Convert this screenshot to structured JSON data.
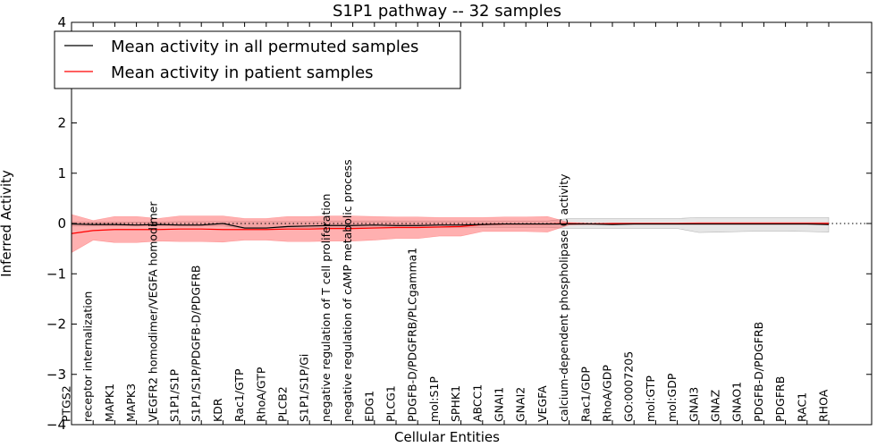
{
  "chart_data": {
    "type": "line",
    "title": "S1P1 pathway -- 32 samples",
    "xlabel": "Cellular Entities",
    "ylabel": "Inferred Activity",
    "ylim": [
      -4,
      4
    ],
    "yticks": [
      4,
      3,
      2,
      1,
      0,
      -1,
      -2,
      -3,
      -4
    ],
    "ytick_labels": [
      "4",
      "3",
      "2",
      "1",
      "0",
      "−1",
      "−2",
      "−3",
      "−4"
    ],
    "grid": false,
    "legend_position": "top-left",
    "categories": [
      "PTGS2",
      "receptor internalization",
      "MAPK1",
      "MAPK3",
      "VEGFR2 homodimer/VEGFA homodimer",
      "S1P1/S1P",
      "S1P1/S1P/PDGFB-D/PDGFRB",
      "KDR",
      "Rac1/GTP",
      "RhoA/GTP",
      "PLCB2",
      "S1P1/S1P/Gi",
      "negative regulation of T cell proliferation",
      "negative regulation of cAMP metabolic process",
      "EDG1",
      "PLCG1",
      "PDGFB-D/PDGFRB/PLCgamma1",
      "mol:S1P",
      "SPHK1",
      "ABCC1",
      "GNAI1",
      "GNAI2",
      "VEGFA",
      "calcium-dependent phospholipase C activity",
      "Rac1/GDP",
      "RhoA/GDP",
      "GO:0007205",
      "mol:GTP",
      "mol:GDP",
      "GNAI3",
      "GNAZ",
      "GNAO1",
      "PDGFB-D/PDGFRB",
      "PDGFRB",
      "RAC1",
      "RHOA"
    ],
    "series": [
      {
        "name": "Mean activity in all permuted samples",
        "color": "#000000",
        "values": [
          -0.01,
          -0.02,
          -0.02,
          -0.03,
          -0.02,
          -0.03,
          -0.03,
          0.0,
          -0.09,
          -0.09,
          -0.06,
          -0.05,
          -0.04,
          -0.04,
          -0.03,
          -0.04,
          -0.04,
          -0.03,
          -0.03,
          -0.02,
          -0.01,
          -0.01,
          -0.01,
          -0.01,
          -0.01,
          -0.02,
          -0.01,
          -0.01,
          -0.01,
          -0.01,
          -0.01,
          -0.01,
          -0.01,
          -0.01,
          -0.01,
          -0.02
        ],
        "band_upper": [
          0.03,
          0.03,
          0.03,
          0.03,
          0.03,
          0.04,
          0.04,
          0.04,
          0.04,
          0.04,
          0.04,
          0.04,
          0.05,
          0.05,
          0.05,
          0.05,
          0.05,
          0.05,
          0.05,
          0.05,
          0.05,
          0.05,
          0.05,
          0.1,
          0.1,
          0.1,
          0.1,
          0.1,
          0.1,
          0.12,
          0.12,
          0.12,
          0.12,
          0.12,
          0.12,
          0.12
        ],
        "band_lower": [
          -0.05,
          -0.05,
          -0.05,
          -0.05,
          -0.05,
          -0.05,
          -0.05,
          -0.05,
          -0.1,
          -0.1,
          -0.08,
          -0.08,
          -0.08,
          -0.08,
          -0.08,
          -0.08,
          -0.08,
          -0.08,
          -0.08,
          -0.08,
          -0.08,
          -0.08,
          -0.08,
          -0.1,
          -0.1,
          -0.1,
          -0.1,
          -0.1,
          -0.1,
          -0.18,
          -0.17,
          -0.16,
          -0.15,
          -0.15,
          -0.16,
          -0.17
        ]
      },
      {
        "name": "Mean activity in patient samples",
        "color": "#ff0000",
        "values": [
          -0.2,
          -0.14,
          -0.12,
          -0.12,
          -0.12,
          -0.11,
          -0.11,
          -0.12,
          -0.12,
          -0.12,
          -0.11,
          -0.11,
          -0.1,
          -0.1,
          -0.09,
          -0.08,
          -0.08,
          -0.07,
          -0.06,
          -0.02,
          -0.01,
          -0.01,
          -0.01,
          0.0,
          -0.01,
          0.0,
          0.0,
          0.0,
          0.0,
          0.0,
          0.0,
          0.0,
          0.0,
          0.0,
          0.0,
          0.0
        ],
        "band_upper": [
          0.18,
          0.06,
          0.14,
          0.14,
          0.1,
          0.15,
          0.15,
          0.15,
          0.1,
          0.1,
          0.14,
          0.14,
          0.15,
          0.15,
          0.14,
          0.13,
          0.13,
          0.12,
          0.12,
          0.12,
          0.13,
          0.13,
          0.14,
          0.02,
          0.01,
          0.01,
          0.01,
          0.01,
          0.01,
          0.02,
          0.02,
          0.02,
          0.02,
          0.02,
          0.02,
          0.02
        ],
        "band_lower": [
          -0.58,
          -0.33,
          -0.38,
          -0.38,
          -0.35,
          -0.36,
          -0.36,
          -0.37,
          -0.33,
          -0.33,
          -0.36,
          -0.36,
          -0.35,
          -0.35,
          -0.33,
          -0.3,
          -0.3,
          -0.25,
          -0.25,
          -0.16,
          -0.16,
          -0.16,
          -0.17,
          -0.03,
          -0.02,
          -0.02,
          -0.02,
          -0.02,
          -0.02,
          -0.02,
          -0.02,
          -0.02,
          -0.02,
          -0.02,
          -0.02,
          -0.02
        ]
      }
    ],
    "reference_line": {
      "style": "dotted",
      "y": 0
    }
  }
}
